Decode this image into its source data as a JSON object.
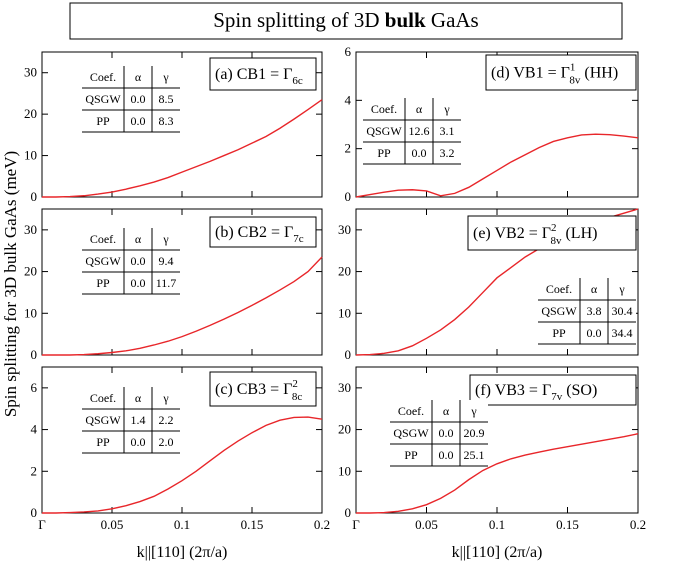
{
  "title": {
    "before": "Spin splitting of 3D ",
    "bold": "bulk",
    "after": " GaAs"
  },
  "ylabel": "Spin splitting for 3D bulk GaAs (meV)",
  "chart_data": [
    {
      "type": "line",
      "annotation": {
        "text": "(a) CB1 = Γ",
        "sub": "6c"
      },
      "table": {
        "header": [
          "Coef.",
          "α",
          "γ"
        ],
        "rows": [
          [
            "QSGW",
            "0.0",
            "8.5"
          ],
          [
            "PP",
            "0.0",
            "8.3"
          ]
        ]
      },
      "color": "#e8262a",
      "x": [
        0,
        0.01,
        0.02,
        0.03,
        0.04,
        0.05,
        0.06,
        0.07,
        0.08,
        0.09,
        0.1,
        0.11,
        0.12,
        0.13,
        0.14,
        0.15,
        0.16,
        0.17,
        0.18,
        0.19,
        0.2
      ],
      "values": [
        0,
        0,
        0.1,
        0.3,
        0.7,
        1.2,
        1.9,
        2.7,
        3.6,
        4.7,
        6.0,
        7.3,
        8.6,
        10.0,
        11.4,
        13.0,
        14.6,
        16.6,
        18.8,
        21.1,
        23.5
      ],
      "xlim": [
        0,
        0.2
      ],
      "xticks": [
        0,
        0.05,
        0.1,
        0.15,
        0.2
      ],
      "ylim": [
        0,
        35
      ],
      "yticks": [
        0,
        10,
        20,
        30
      ]
    },
    {
      "type": "line",
      "annotation": {
        "text": "(b) CB2 = Γ",
        "sub": "7c"
      },
      "table": {
        "header": [
          "Coef.",
          "α",
          "γ"
        ],
        "rows": [
          [
            "QSGW",
            "0.0",
            "9.4"
          ],
          [
            "PP",
            "0.0",
            "11.7"
          ]
        ]
      },
      "color": "#e8262a",
      "x": [
        0,
        0.01,
        0.02,
        0.03,
        0.04,
        0.05,
        0.06,
        0.07,
        0.08,
        0.09,
        0.1,
        0.11,
        0.12,
        0.13,
        0.14,
        0.15,
        0.16,
        0.17,
        0.18,
        0.19,
        0.2
      ],
      "values": [
        0,
        0,
        0,
        0.1,
        0.3,
        0.6,
        1.0,
        1.6,
        2.4,
        3.3,
        4.4,
        5.7,
        7.1,
        8.6,
        10.2,
        11.9,
        13.7,
        15.6,
        17.6,
        20.0,
        23.5
      ],
      "xlim": [
        0,
        0.2
      ],
      "xticks": [
        0,
        0.05,
        0.1,
        0.15,
        0.2
      ],
      "ylim": [
        0,
        35
      ],
      "yticks": [
        0,
        10,
        20,
        30
      ]
    },
    {
      "type": "line",
      "annotation": {
        "text": "(c) CB3 = Γ",
        "sup": "2",
        "sub": "8c"
      },
      "table": {
        "header": [
          "Coef.",
          "α",
          "γ"
        ],
        "rows": [
          [
            "QSGW",
            "1.4",
            "2.2"
          ],
          [
            "PP",
            "0.0",
            "2.0"
          ]
        ]
      },
      "color": "#e8262a",
      "x": [
        0,
        0.01,
        0.02,
        0.03,
        0.04,
        0.05,
        0.06,
        0.07,
        0.08,
        0.09,
        0.1,
        0.11,
        0.12,
        0.13,
        0.14,
        0.15,
        0.16,
        0.17,
        0.18,
        0.19,
        0.2
      ],
      "values": [
        0,
        0,
        0.02,
        0.05,
        0.1,
        0.2,
        0.35,
        0.55,
        0.8,
        1.15,
        1.55,
        2.0,
        2.5,
        3.0,
        3.45,
        3.85,
        4.2,
        4.45,
        4.58,
        4.6,
        4.5
      ],
      "xlim": [
        0,
        0.2
      ],
      "xticks": [
        {
          "value": 0,
          "label": "Γ"
        },
        0.05,
        0.1,
        0.15,
        0.2
      ],
      "ylim": [
        0,
        7
      ],
      "yticks": [
        0,
        2,
        4,
        6
      ],
      "xlabel": "k||[110] (2π/a)"
    },
    {
      "type": "line",
      "annotation": {
        "text": "(d) VB1 = Γ",
        "sup": "1",
        "sub": "8v",
        "tail": " (HH)"
      },
      "table": {
        "header": [
          "Coef.",
          "α",
          "γ"
        ],
        "rows": [
          [
            "QSGW",
            "12.6",
            "3.1"
          ],
          [
            "PP",
            "0.0",
            "3.2"
          ]
        ]
      },
      "color": "#e8262a",
      "x": [
        0,
        0.01,
        0.02,
        0.03,
        0.04,
        0.05,
        0.06,
        0.07,
        0.08,
        0.09,
        0.1,
        0.11,
        0.12,
        0.13,
        0.14,
        0.15,
        0.16,
        0.17,
        0.18,
        0.19,
        0.2
      ],
      "values": [
        0,
        0.1,
        0.2,
        0.28,
        0.3,
        0.25,
        0.05,
        0.15,
        0.4,
        0.75,
        1.1,
        1.45,
        1.75,
        2.05,
        2.3,
        2.45,
        2.57,
        2.6,
        2.58,
        2.52,
        2.45
      ],
      "xlim": [
        0,
        0.2
      ],
      "xticks": [
        0,
        0.05,
        0.1,
        0.15,
        0.2
      ],
      "ylim": [
        0,
        6
      ],
      "yticks": [
        0,
        2,
        4,
        6
      ]
    },
    {
      "type": "line",
      "annotation": {
        "text": "(e) VB2 = Γ",
        "sup": "2",
        "sub": "8v",
        "tail": " (LH)"
      },
      "table": {
        "header": [
          "Coef.",
          "α",
          "γ"
        ],
        "rows": [
          [
            "QSGW",
            "3.8",
            "30.4"
          ],
          [
            "PP",
            "0.0",
            "34.4"
          ]
        ]
      },
      "color": "#e8262a",
      "x": [
        0,
        0.01,
        0.02,
        0.03,
        0.04,
        0.05,
        0.06,
        0.07,
        0.08,
        0.09,
        0.1,
        0.11,
        0.12,
        0.13,
        0.14,
        0.15,
        0.16,
        0.17,
        0.18,
        0.19,
        0.2
      ],
      "values": [
        0,
        0.1,
        0.4,
        1.0,
        2.2,
        4.0,
        6.0,
        8.5,
        11.5,
        15.0,
        18.5,
        21.0,
        23.5,
        25.5,
        27.5,
        29.0,
        30.5,
        31.8,
        33.0,
        34.0,
        35.0
      ],
      "xlim": [
        0,
        0.2
      ],
      "xticks": [
        0,
        0.05,
        0.1,
        0.15,
        0.2
      ],
      "ylim": [
        0,
        35
      ],
      "yticks": [
        0,
        10,
        20,
        30
      ]
    },
    {
      "type": "line",
      "annotation": {
        "text": "(f) VB3 = Γ",
        "sub": "7v",
        "tail": " (SO)"
      },
      "table": {
        "header": [
          "Coef.",
          "α",
          "γ"
        ],
        "rows": [
          [
            "QSGW",
            "0.0",
            "20.9"
          ],
          [
            "PP",
            "0.0",
            "25.1"
          ]
        ]
      },
      "color": "#e8262a",
      "x": [
        0,
        0.01,
        0.02,
        0.03,
        0.04,
        0.05,
        0.06,
        0.07,
        0.08,
        0.09,
        0.1,
        0.11,
        0.12,
        0.13,
        0.14,
        0.15,
        0.16,
        0.17,
        0.18,
        0.19,
        0.2
      ],
      "values": [
        0,
        0,
        0.1,
        0.4,
        1.0,
        2.0,
        3.5,
        5.5,
        8.0,
        10.2,
        11.8,
        13.0,
        13.9,
        14.6,
        15.3,
        15.9,
        16.5,
        17.1,
        17.7,
        18.3,
        19.0
      ],
      "xlim": [
        0,
        0.2
      ],
      "xticks": [
        {
          "value": 0,
          "label": "Γ"
        },
        0.05,
        0.1,
        0.15,
        0.2
      ],
      "ylim": [
        0,
        35
      ],
      "yticks": [
        0,
        10,
        20,
        30
      ],
      "xlabel": "k||[110] (2π/a)"
    }
  ]
}
